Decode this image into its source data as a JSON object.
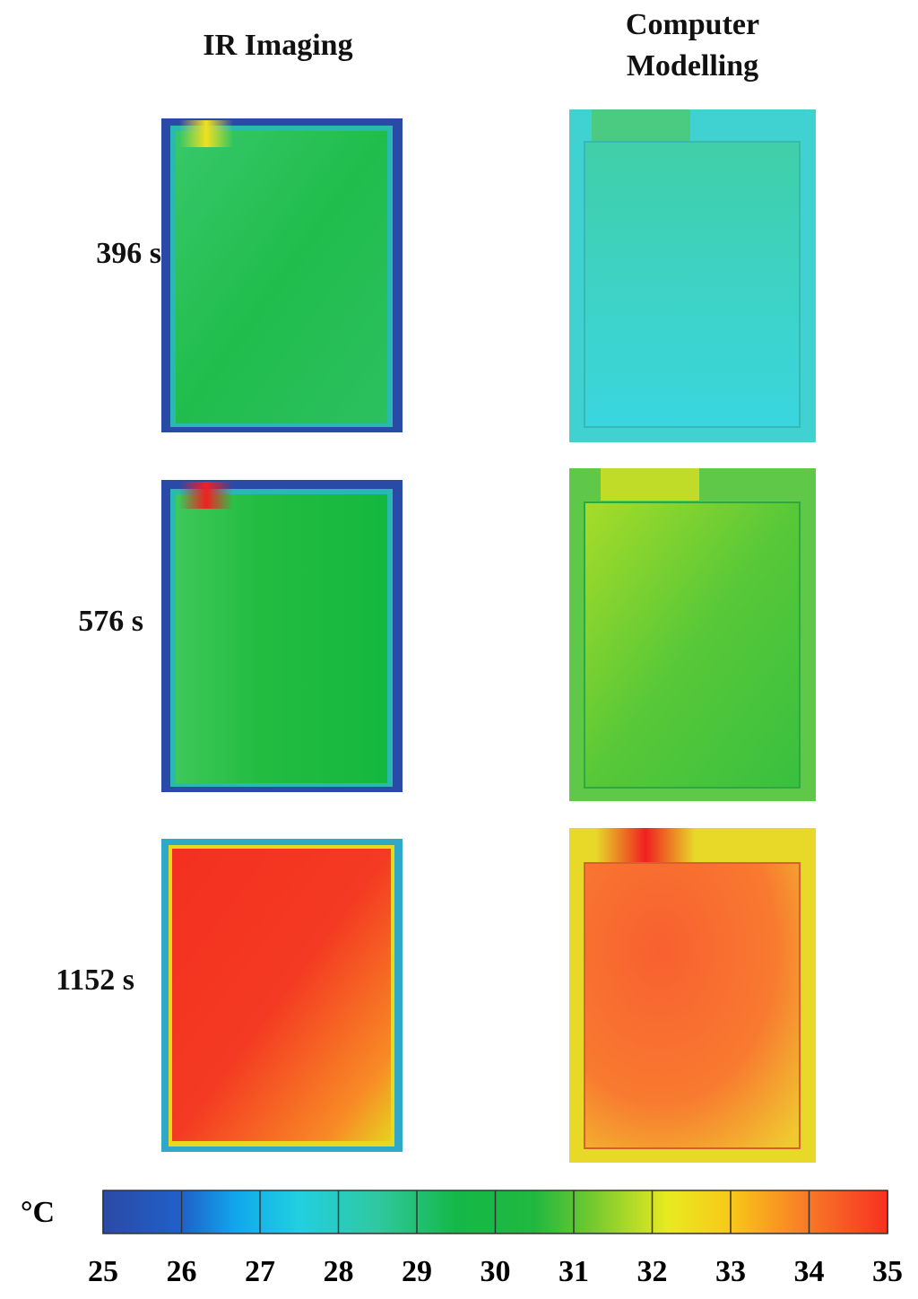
{
  "columns": [
    "IR Imaging",
    "Computer Modelling"
  ],
  "rows": [
    "396 s",
    "576 s",
    "1152 s"
  ],
  "colorbar": {
    "unit": "°C",
    "range": [
      25,
      35
    ],
    "ticks": [
      25,
      26,
      27,
      28,
      29,
      30,
      31,
      32,
      33,
      34,
      35
    ]
  }
}
